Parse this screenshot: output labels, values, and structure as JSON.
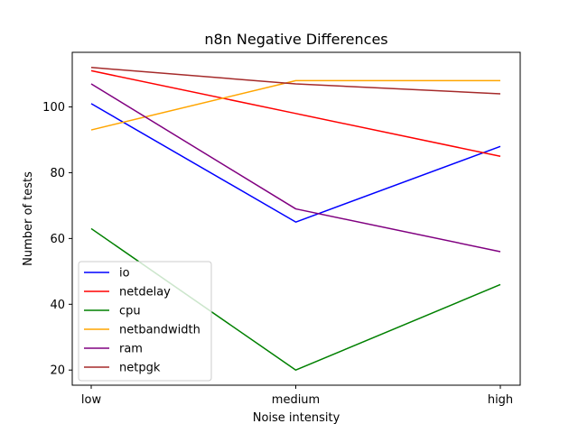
{
  "chart_data": {
    "type": "line",
    "title": "n8n Negative Differences",
    "xlabel": "Noise intensity",
    "ylabel": "Number of tests",
    "categories": [
      "low",
      "medium",
      "high"
    ],
    "yticks": [
      20,
      40,
      60,
      80,
      100
    ],
    "ylim": [
      15.4,
      116.6
    ],
    "grid": false,
    "legend_position": "lower-left",
    "series": [
      {
        "name": "io",
        "color": "#0000ff",
        "values": [
          101,
          65,
          88
        ]
      },
      {
        "name": "netdelay",
        "color": "#ff0000",
        "values": [
          111,
          98,
          85
        ]
      },
      {
        "name": "cpu",
        "color": "#008000",
        "values": [
          63,
          20,
          46
        ]
      },
      {
        "name": "netbandwidth",
        "color": "#ffa500",
        "values": [
          93,
          108,
          108
        ]
      },
      {
        "name": "ram",
        "color": "#800080",
        "values": [
          107,
          69,
          56
        ]
      },
      {
        "name": "netpgk",
        "color": "#a52a2a",
        "values": [
          112,
          107,
          104
        ]
      }
    ]
  }
}
